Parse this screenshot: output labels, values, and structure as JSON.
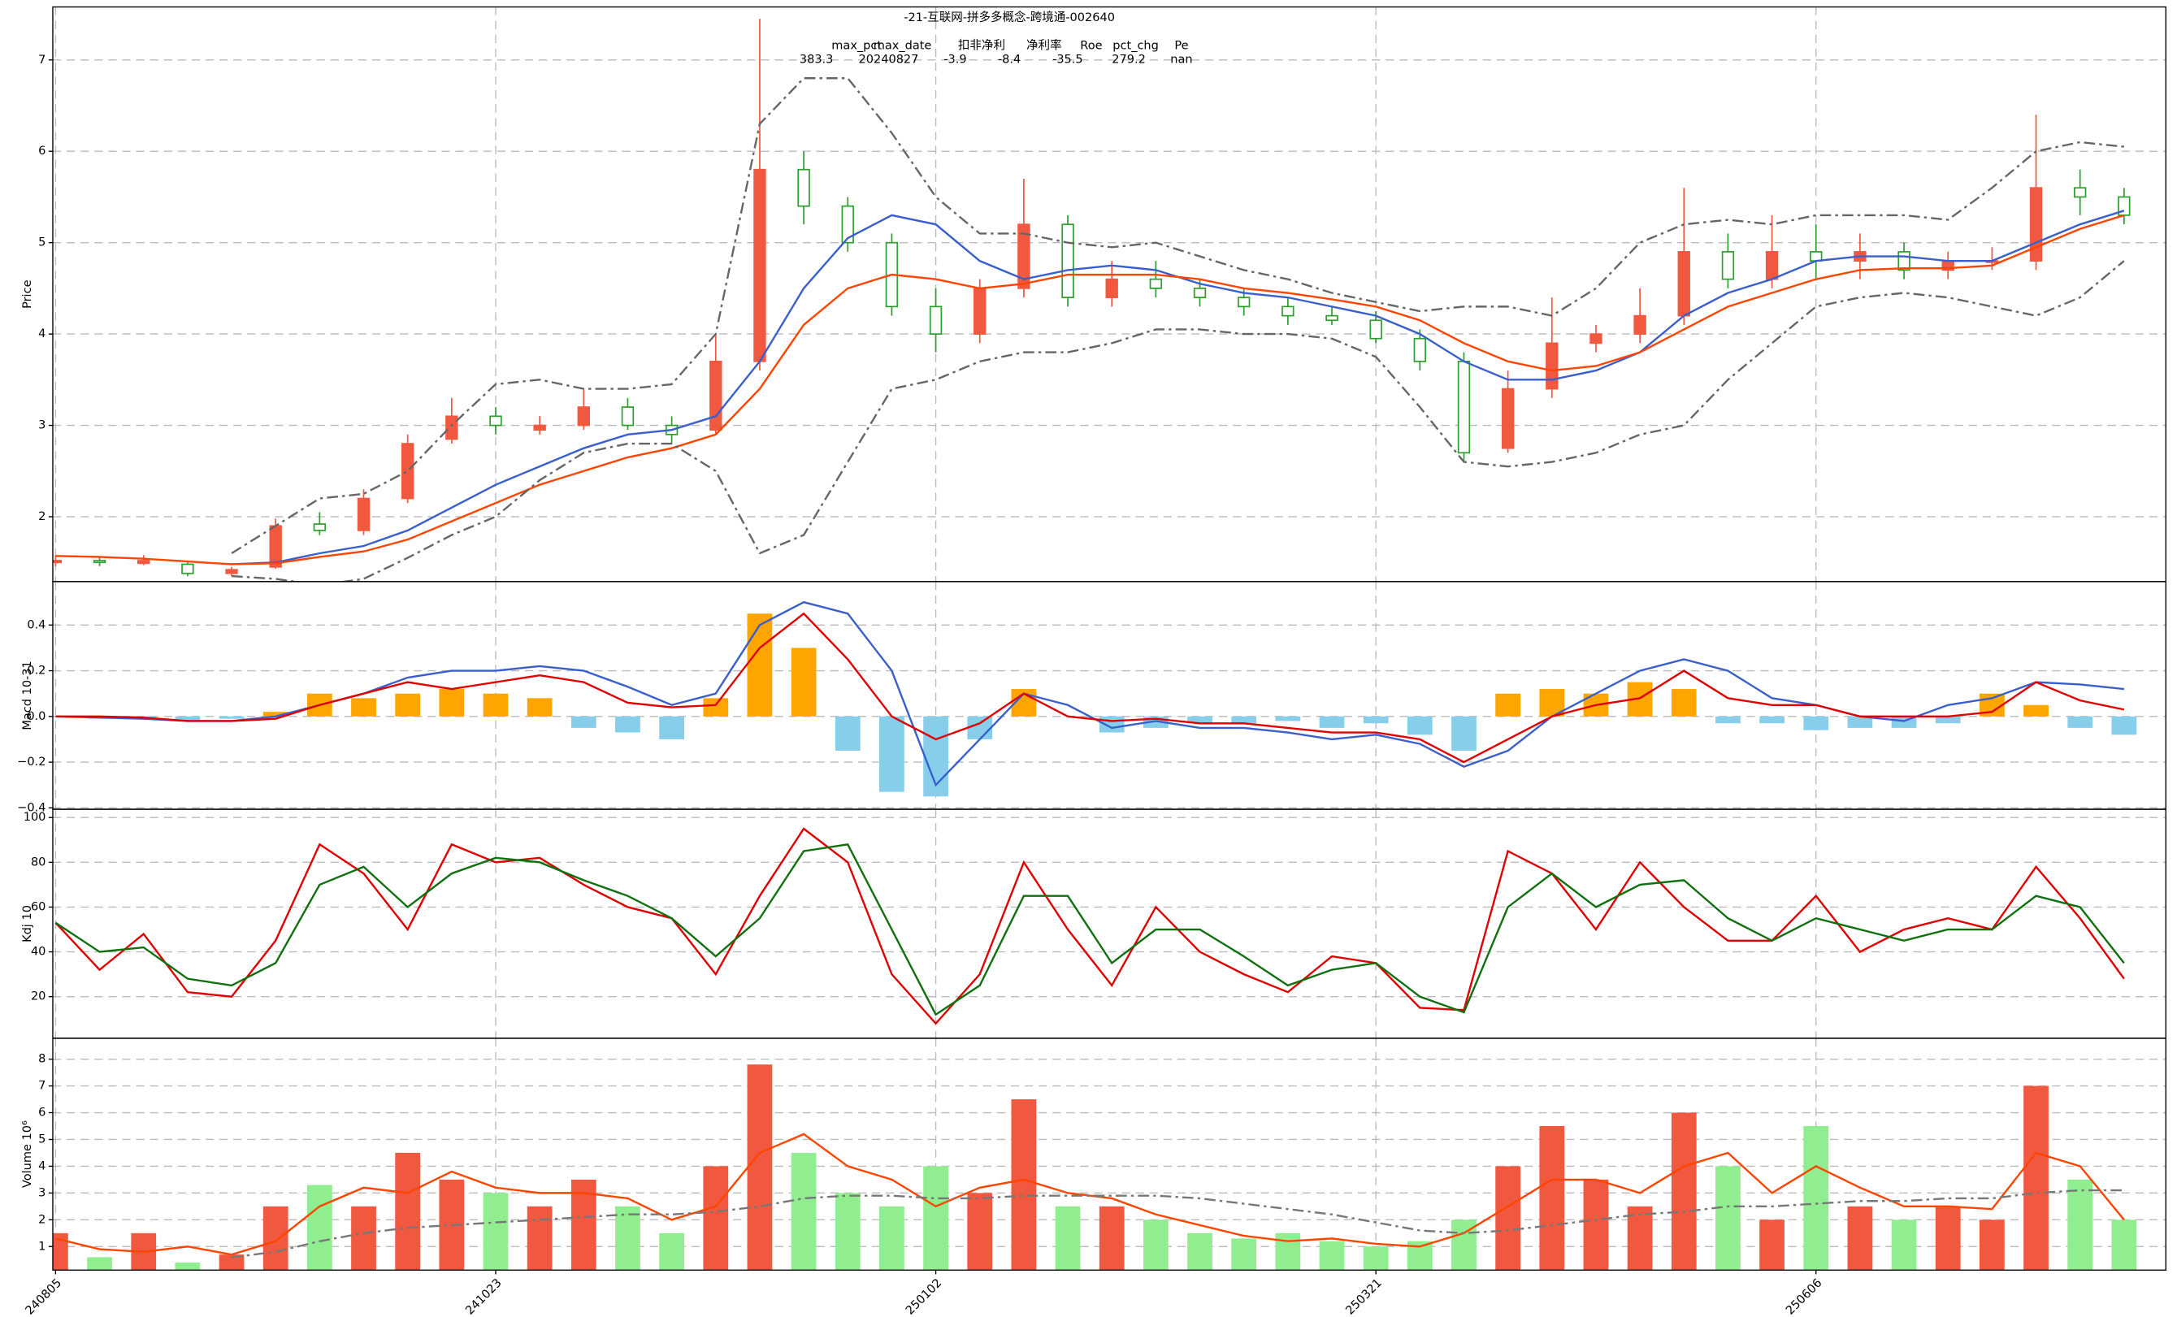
{
  "chart_data": [
    {
      "type": "candlestick",
      "title": "-21-互联网-拼多多概念-跨境通-002640",
      "stats": {
        "headers": [
          "max_pct",
          "max_date",
          "扣非净利",
          "净利率",
          "Roe",
          "pct_chg",
          "Pe"
        ],
        "values": [
          "383.3",
          "20240827",
          "-3.9",
          "-8.4",
          "-35.5",
          "279.2",
          "nan"
        ]
      },
      "ylabel": "Price",
      "ylim": [
        1.29,
        7.58
      ],
      "yticks": [
        2,
        3,
        4,
        5,
        6,
        7
      ],
      "grid": true,
      "up_color": "#f0593f",
      "down_color": "#2ca02c",
      "open": [
        1.5,
        1.52,
        1.49,
        1.48,
        1.38,
        1.45,
        1.92,
        1.85,
        2.2,
        2.85,
        3.1,
        2.95,
        3.0,
        3.2,
        3.0,
        2.95,
        3.7,
        5.8,
        5.4,
        5.0,
        4.3,
        4.0,
        4.5,
        5.2,
        4.4,
        4.6,
        4.5,
        4.4,
        4.3,
        4.2,
        4.15,
        3.95,
        3.7,
        2.75,
        3.4,
        3.9,
        4.0,
        4.2,
        4.9,
        4.6,
        4.9,
        4.8,
        4.9,
        4.7,
        4.8,
        4.8,
        5.6,
        5.5
      ],
      "high": [
        1.58,
        1.56,
        1.58,
        1.5,
        1.45,
        1.98,
        2.05,
        2.3,
        2.9,
        3.3,
        3.2,
        3.1,
        3.4,
        3.3,
        3.1,
        4.0,
        7.45,
        6.0,
        5.5,
        5.1,
        4.5,
        4.6,
        5.7,
        5.3,
        4.8,
        4.8,
        4.6,
        4.5,
        4.4,
        4.3,
        4.25,
        4.05,
        3.8,
        3.6,
        4.4,
        4.1,
        4.5,
        5.6,
        5.1,
        5.3,
        5.2,
        5.1,
        5.0,
        4.9,
        4.95,
        6.4,
        5.8,
        5.6
      ],
      "low": [
        1.46,
        1.46,
        1.47,
        1.35,
        1.35,
        1.43,
        1.8,
        1.8,
        2.15,
        2.8,
        2.9,
        2.9,
        2.95,
        2.95,
        2.8,
        2.9,
        3.6,
        5.2,
        4.9,
        4.2,
        3.8,
        3.9,
        4.4,
        4.3,
        4.3,
        4.4,
        4.3,
        4.2,
        4.1,
        4.1,
        3.9,
        3.6,
        2.6,
        2.7,
        3.3,
        3.8,
        3.9,
        4.1,
        4.5,
        4.5,
        4.6,
        4.6,
        4.6,
        4.6,
        4.7,
        4.7,
        5.3,
        5.2
      ],
      "close": [
        1.52,
        1.5,
        1.52,
        1.38,
        1.42,
        1.9,
        1.85,
        2.2,
        2.8,
        3.1,
        3.0,
        3.0,
        3.2,
        3.0,
        2.9,
        3.7,
        5.8,
        5.4,
        5.0,
        4.3,
        4.0,
        4.5,
        5.2,
        4.4,
        4.6,
        4.5,
        4.4,
        4.3,
        4.2,
        4.15,
        3.95,
        3.7,
        2.7,
        3.4,
        3.9,
        4.0,
        4.2,
        4.9,
        4.6,
        4.9,
        4.8,
        4.9,
        4.7,
        4.8,
        4.8,
        5.6,
        5.5,
        5.3
      ],
      "series": [
        {
          "color": "#3a5fcd",
          "dash": "solid",
          "values": [
            null,
            null,
            null,
            null,
            1.48,
            1.5,
            1.6,
            1.68,
            1.85,
            2.1,
            2.35,
            2.55,
            2.75,
            2.9,
            2.95,
            3.1,
            3.7,
            4.5,
            5.05,
            5.3,
            5.2,
            4.8,
            4.6,
            4.7,
            4.75,
            4.7,
            4.55,
            4.45,
            4.4,
            4.3,
            4.2,
            4.0,
            3.7,
            3.5,
            3.5,
            3.6,
            3.8,
            4.2,
            4.45,
            4.6,
            4.8,
            4.85,
            4.85,
            4.8,
            4.8,
            5.0,
            5.2,
            5.35
          ]
        },
        {
          "color": "#ff4500",
          "dash": "solid",
          "values": [
            1.57,
            1.56,
            1.54,
            1.51,
            1.48,
            1.49,
            1.56,
            1.62,
            1.75,
            1.95,
            2.15,
            2.35,
            2.5,
            2.65,
            2.75,
            2.9,
            3.4,
            4.1,
            4.5,
            4.65,
            4.6,
            4.5,
            4.55,
            4.65,
            4.65,
            4.65,
            4.6,
            4.5,
            4.45,
            4.38,
            4.3,
            4.15,
            3.9,
            3.7,
            3.6,
            3.65,
            3.8,
            4.05,
            4.3,
            4.45,
            4.6,
            4.7,
            4.72,
            4.72,
            4.75,
            4.95,
            5.15,
            5.3
          ]
        },
        {
          "color": "#666666",
          "dash": "dashdot",
          "values": [
            null,
            null,
            null,
            null,
            1.6,
            1.9,
            2.2,
            2.25,
            2.5,
            3.0,
            3.45,
            3.5,
            3.4,
            3.4,
            3.45,
            4.0,
            6.3,
            6.8,
            6.8,
            6.2,
            5.5,
            5.1,
            5.1,
            5.0,
            4.95,
            5.0,
            4.85,
            4.7,
            4.6,
            4.45,
            4.35,
            4.25,
            4.3,
            4.3,
            4.2,
            4.5,
            5.0,
            5.2,
            5.25,
            5.2,
            5.3,
            5.3,
            5.3,
            5.25,
            5.6,
            6.0,
            6.1,
            6.05
          ]
        },
        {
          "color": "#666666",
          "dash": "dashdot",
          "values": [
            null,
            null,
            null,
            null,
            1.35,
            1.32,
            1.25,
            1.32,
            1.55,
            1.8,
            2.0,
            2.4,
            2.7,
            2.8,
            2.8,
            2.5,
            1.6,
            1.8,
            2.6,
            3.4,
            3.5,
            3.7,
            3.8,
            3.8,
            3.9,
            4.05,
            4.05,
            4.0,
            4.0,
            3.95,
            3.75,
            3.2,
            2.6,
            2.55,
            2.6,
            2.7,
            2.9,
            3.0,
            3.5,
            3.9,
            4.3,
            4.4,
            4.45,
            4.4,
            4.3,
            4.2,
            4.4,
            4.8
          ]
        }
      ]
    },
    {
      "type": "macd",
      "ylabel": "Macd 10-31",
      "ylim": [
        -0.406,
        0.59
      ],
      "grid": true,
      "yticks": [
        {
          "value": -0.4,
          "label": "−0.4"
        },
        {
          "value": -0.2,
          "label": "−0.2"
        },
        {
          "value": 0,
          "label": "0.0"
        },
        0.2,
        0.4
      ],
      "bars": {
        "pos_color": "#ffa500",
        "neg_color": "#87ceeb",
        "values": [
          0,
          -0.01,
          -0.01,
          -0.02,
          -0.01,
          0.02,
          0.1,
          0.08,
          0.1,
          0.12,
          0.1,
          0.08,
          -0.05,
          -0.07,
          -0.1,
          0.08,
          0.45,
          0.3,
          -0.15,
          -0.33,
          -0.35,
          -0.1,
          0.12,
          0.0,
          -0.07,
          -0.05,
          -0.03,
          -0.03,
          -0.02,
          -0.05,
          -0.03,
          -0.08,
          -0.15,
          0.1,
          0.12,
          0.1,
          0.15,
          0.12,
          -0.03,
          -0.03,
          -0.06,
          -0.05,
          -0.05,
          -0.03,
          0.1,
          0.05,
          -0.05,
          -0.08
        ]
      },
      "series": [
        {
          "color": "#3a5fcd",
          "dash": "solid",
          "values": [
            0,
            -0.005,
            -0.01,
            -0.02,
            -0.02,
            0.0,
            0.05,
            0.1,
            0.17,
            0.2,
            0.2,
            0.22,
            0.2,
            0.13,
            0.05,
            0.1,
            0.4,
            0.5,
            0.45,
            0.2,
            -0.3,
            -0.1,
            0.1,
            0.05,
            -0.05,
            -0.02,
            -0.05,
            -0.05,
            -0.07,
            -0.1,
            -0.08,
            -0.12,
            -0.22,
            -0.15,
            0.0,
            0.1,
            0.2,
            0.25,
            0.2,
            0.08,
            0.05,
            0.0,
            -0.02,
            0.05,
            0.08,
            0.15,
            0.14,
            0.12
          ]
        },
        {
          "color": "#e00000",
          "dash": "solid",
          "values": [
            0,
            0,
            -0.005,
            -0.02,
            -0.02,
            -0.01,
            0.05,
            0.1,
            0.15,
            0.12,
            0.15,
            0.18,
            0.15,
            0.06,
            0.04,
            0.05,
            0.3,
            0.45,
            0.25,
            0.0,
            -0.1,
            -0.03,
            0.1,
            0.0,
            -0.02,
            -0.01,
            -0.03,
            -0.03,
            -0.05,
            -0.07,
            -0.07,
            -0.1,
            -0.2,
            -0.1,
            0.0,
            0.05,
            0.08,
            0.2,
            0.08,
            0.05,
            0.05,
            0.0,
            0.0,
            0.0,
            0.02,
            0.15,
            0.07,
            0.03
          ]
        }
      ]
    },
    {
      "type": "line",
      "ylabel": "Kdj 10",
      "ylim": [
        1.4,
        103.7
      ],
      "yticks": [
        20,
        40,
        60,
        80,
        100
      ],
      "grid": true,
      "series": [
        {
          "color": "#e00000",
          "dash": "solid",
          "values": [
            53,
            32,
            48,
            22,
            20,
            45,
            88,
            75,
            50,
            88,
            80,
            82,
            70,
            60,
            55,
            30,
            65,
            95,
            80,
            30,
            8,
            30,
            80,
            50,
            25,
            60,
            40,
            30,
            22,
            38,
            35,
            15,
            14,
            85,
            75,
            50,
            80,
            60,
            45,
            45,
            65,
            40,
            50,
            55,
            50,
            78,
            55,
            28
          ]
        },
        {
          "color": "#107010",
          "dash": "solid",
          "values": [
            53,
            40,
            42,
            28,
            25,
            35,
            70,
            78,
            60,
            75,
            82,
            80,
            72,
            65,
            55,
            38,
            55,
            85,
            88,
            50,
            12,
            25,
            65,
            65,
            35,
            50,
            50,
            38,
            25,
            32,
            35,
            20,
            13,
            60,
            75,
            60,
            70,
            72,
            55,
            45,
            55,
            50,
            45,
            50,
            50,
            65,
            60,
            35
          ]
        }
      ]
    },
    {
      "type": "volume",
      "ylabel": "Volume  10⁶",
      "ylim": [
        0.12,
        8.78
      ],
      "yticks": [
        1,
        2,
        3,
        4,
        5,
        6,
        7,
        8
      ],
      "grid": true,
      "up_color": "#f0593f",
      "down_color": "#90ee90",
      "categories": [
        "240805",
        null,
        null,
        null,
        null,
        null,
        null,
        null,
        null,
        null,
        "241023",
        null,
        null,
        null,
        null,
        null,
        null,
        null,
        null,
        null,
        "250102",
        null,
        null,
        null,
        null,
        null,
        null,
        null,
        null,
        null,
        "250321",
        null,
        null,
        null,
        null,
        null,
        null,
        null,
        null,
        null,
        "250606",
        null,
        null,
        null,
        null,
        null,
        null,
        null
      ],
      "values": [
        1.5,
        0.6,
        1.5,
        0.4,
        0.7,
        2.5,
        3.3,
        2.5,
        4.5,
        3.5,
        3.0,
        2.5,
        3.5,
        2.5,
        1.5,
        4.0,
        7.8,
        4.5,
        3.0,
        2.5,
        4.0,
        3.0,
        6.5,
        2.5,
        2.5,
        2.0,
        1.5,
        1.3,
        1.5,
        1.2,
        1.0,
        1.2,
        2.0,
        4.0,
        5.5,
        3.5,
        2.5,
        6.0,
        4.0,
        2.0,
        5.5,
        2.5,
        2.0,
        2.5,
        2.0,
        7.0,
        3.5,
        2.0
      ],
      "series": [
        {
          "color": "#ff4500",
          "dash": "solid",
          "values": [
            1.3,
            0.9,
            0.8,
            1.0,
            0.7,
            1.2,
            2.5,
            3.2,
            3.0,
            3.8,
            3.2,
            3.0,
            3.0,
            2.8,
            2.0,
            2.5,
            4.5,
            5.2,
            4.0,
            3.5,
            2.5,
            3.2,
            3.5,
            3.0,
            2.8,
            2.2,
            1.8,
            1.4,
            1.2,
            1.3,
            1.1,
            1.0,
            1.5,
            2.5,
            3.5,
            3.5,
            3.0,
            4.0,
            4.5,
            3.0,
            4.0,
            3.2,
            2.5,
            2.5,
            2.4,
            4.5,
            4.0,
            2.0
          ]
        },
        {
          "color": "#777777",
          "dash": "dashdot",
          "values": [
            null,
            null,
            null,
            null,
            0.6,
            0.8,
            1.2,
            1.5,
            1.7,
            1.8,
            1.9,
            2.0,
            2.1,
            2.2,
            2.2,
            2.3,
            2.5,
            2.8,
            2.9,
            2.9,
            2.8,
            2.8,
            2.9,
            2.9,
            2.9,
            2.9,
            2.8,
            2.6,
            2.4,
            2.2,
            1.9,
            1.6,
            1.5,
            1.6,
            1.8,
            2.0,
            2.2,
            2.3,
            2.5,
            2.5,
            2.6,
            2.7,
            2.7,
            2.8,
            2.8,
            3.0,
            3.1,
            3.1
          ]
        }
      ]
    }
  ]
}
